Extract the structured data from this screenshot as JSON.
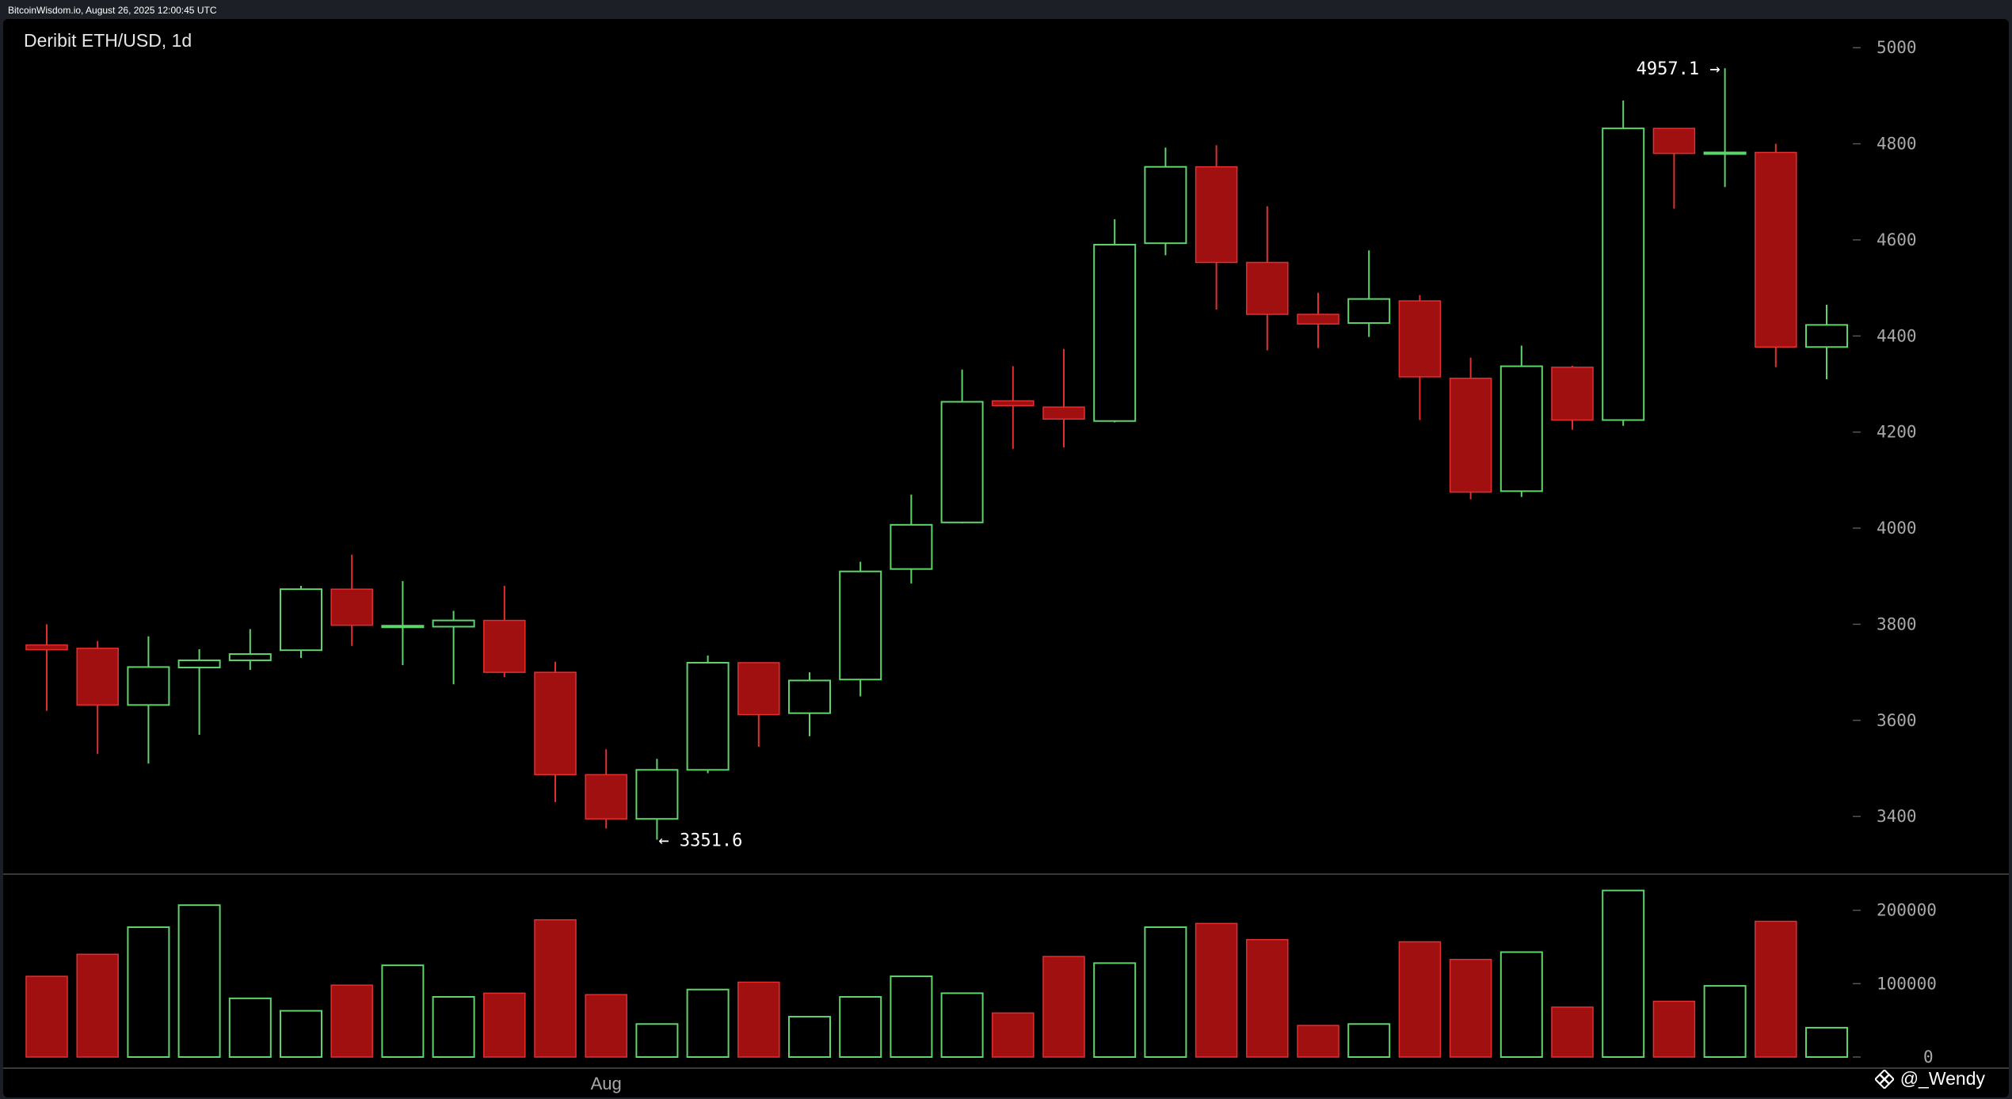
{
  "header": {
    "source_text": "BitcoinWisdom.io, August 26, 2025 12:00:45 UTC"
  },
  "watermark": {
    "text": "@_Wendy",
    "icon": "binance-diamond-icon"
  },
  "colors": {
    "up": "#5fd46a",
    "down": "#a01010",
    "down_stroke": "#e03030",
    "axis_text": "#a9a9a9",
    "background": "#000000"
  },
  "chart_data": {
    "type": "candlestick",
    "title": "Deribit ETH/USD, 1d",
    "x_tick_labels": [
      {
        "index": 11,
        "label": "Aug"
      }
    ],
    "price_axis": {
      "ticks": [
        3400,
        3600,
        3800,
        4000,
        4200,
        4400,
        4600,
        4800,
        5000
      ],
      "range": [
        3280,
        5030
      ]
    },
    "volume_axis": {
      "ticks": [
        0,
        100000,
        200000
      ],
      "range": [
        0,
        232000
      ]
    },
    "annotations": [
      {
        "text": "4957.1 →",
        "index": 33,
        "value": 4957.1
      },
      {
        "text": "← 3351.6",
        "index": 12,
        "value": 3351.6
      }
    ],
    "candles": [
      {
        "o": 3757,
        "h": 3800,
        "l": 3620,
        "c": 3747,
        "v": 110000
      },
      {
        "o": 3750,
        "h": 3765,
        "l": 3530,
        "c": 3632,
        "v": 140000
      },
      {
        "o": 3632,
        "h": 3775,
        "l": 3510,
        "c": 3711,
        "v": 177000
      },
      {
        "o": 3710,
        "h": 3748,
        "l": 3570,
        "c": 3725,
        "v": 207000
      },
      {
        "o": 3725,
        "h": 3790,
        "l": 3705,
        "c": 3738,
        "v": 80000
      },
      {
        "o": 3746,
        "h": 3880,
        "l": 3730,
        "c": 3873,
        "v": 63000
      },
      {
        "o": 3873,
        "h": 3945,
        "l": 3755,
        "c": 3798,
        "v": 98000
      },
      {
        "o": 3797,
        "h": 3890,
        "l": 3715,
        "c": 3797,
        "v": 125000
      },
      {
        "o": 3795,
        "h": 3828,
        "l": 3675,
        "c": 3808,
        "v": 82000
      },
      {
        "o": 3808,
        "h": 3880,
        "l": 3690,
        "c": 3700,
        "v": 87000
      },
      {
        "o": 3700,
        "h": 3722,
        "l": 3430,
        "c": 3487,
        "v": 187000
      },
      {
        "o": 3487,
        "h": 3540,
        "l": 3375,
        "c": 3395,
        "v": 85000
      },
      {
        "o": 3395,
        "h": 3520,
        "l": 3351.6,
        "c": 3497,
        "v": 45000
      },
      {
        "o": 3497,
        "h": 3735,
        "l": 3490,
        "c": 3720,
        "v": 92000
      },
      {
        "o": 3720,
        "h": 3720,
        "l": 3545,
        "c": 3612,
        "v": 102000
      },
      {
        "o": 3615,
        "h": 3700,
        "l": 3567,
        "c": 3683,
        "v": 55000
      },
      {
        "o": 3685,
        "h": 3930,
        "l": 3650,
        "c": 3910,
        "v": 82000
      },
      {
        "o": 3915,
        "h": 4070,
        "l": 3885,
        "c": 4007,
        "v": 110000
      },
      {
        "o": 4012,
        "h": 4330,
        "l": 4010,
        "c": 4263,
        "v": 87000
      },
      {
        "o": 4265,
        "h": 4337,
        "l": 4165,
        "c": 4255,
        "v": 60000
      },
      {
        "o": 4252,
        "h": 4373,
        "l": 4168,
        "c": 4227,
        "v": 137000
      },
      {
        "o": 4223,
        "h": 4643,
        "l": 4220,
        "c": 4590,
        "v": 128000
      },
      {
        "o": 4593,
        "h": 4792,
        "l": 4568,
        "c": 4752,
        "v": 177000
      },
      {
        "o": 4752,
        "h": 4797,
        "l": 4455,
        "c": 4553,
        "v": 182000
      },
      {
        "o": 4553,
        "h": 4670,
        "l": 4370,
        "c": 4445,
        "v": 160000
      },
      {
        "o": 4445,
        "h": 4490,
        "l": 4375,
        "c": 4425,
        "v": 43000
      },
      {
        "o": 4427,
        "h": 4578,
        "l": 4398,
        "c": 4477,
        "v": 45000
      },
      {
        "o": 4473,
        "h": 4485,
        "l": 4225,
        "c": 4315,
        "v": 157000
      },
      {
        "o": 4312,
        "h": 4355,
        "l": 4060,
        "c": 4075,
        "v": 133000
      },
      {
        "o": 4077,
        "h": 4380,
        "l": 4065,
        "c": 4337,
        "v": 143000
      },
      {
        "o": 4335,
        "h": 4338,
        "l": 4205,
        "c": 4225,
        "v": 68000
      },
      {
        "o": 4225,
        "h": 4890,
        "l": 4213,
        "c": 4832,
        "v": 227000
      },
      {
        "o": 4832,
        "h": 4832,
        "l": 4665,
        "c": 4780,
        "v": 76000
      },
      {
        "o": 4780,
        "h": 4957.1,
        "l": 4710,
        "c": 4782,
        "v": 97000
      },
      {
        "o": 4782,
        "h": 4800,
        "l": 4335,
        "c": 4377,
        "v": 185000
      },
      {
        "o": 4377,
        "h": 4465,
        "l": 4310,
        "c": 4423,
        "v": 40000
      }
    ]
  }
}
